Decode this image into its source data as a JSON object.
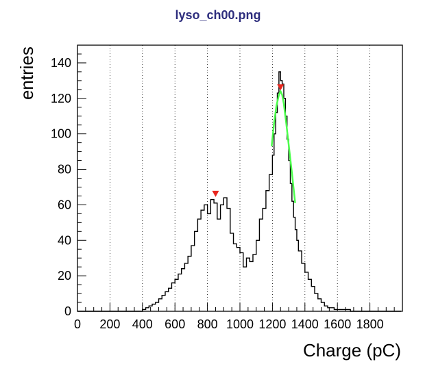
{
  "chart_data": {
    "type": "histogram",
    "title": "lyso_ch00.png",
    "xlabel": "Charge (pC)",
    "ylabel": "entries",
    "xlim": [
      0,
      2000
    ],
    "ylim": [
      0,
      150
    ],
    "x_ticks": [
      0,
      200,
      400,
      600,
      800,
      1000,
      1200,
      1400,
      1600,
      1800
    ],
    "x_tick_labels": [
      "0",
      "200",
      "400",
      "600",
      "800",
      "1000",
      "1200",
      "1400",
      "1600",
      "1800"
    ],
    "y_ticks": [
      0,
      20,
      40,
      60,
      80,
      100,
      120,
      140
    ],
    "y_tick_labels": [
      "0",
      "20",
      "40",
      "60",
      "80",
      "100",
      "120",
      "140"
    ],
    "grid": "vertical-dotted",
    "histogram": {
      "x": [
        0,
        40,
        80,
        120,
        160,
        200,
        240,
        280,
        320,
        360,
        400,
        420,
        440,
        460,
        480,
        500,
        520,
        540,
        560,
        580,
        600,
        620,
        640,
        660,
        680,
        700,
        720,
        740,
        760,
        780,
        800,
        820,
        840,
        860,
        880,
        900,
        920,
        940,
        960,
        980,
        1000,
        1020,
        1040,
        1060,
        1080,
        1100,
        1120,
        1140,
        1160,
        1180,
        1200,
        1210,
        1220,
        1230,
        1240,
        1250,
        1260,
        1270,
        1280,
        1290,
        1300,
        1310,
        1320,
        1330,
        1340,
        1350,
        1360,
        1380,
        1400,
        1420,
        1440,
        1460,
        1480,
        1500,
        1520,
        1540,
        1560,
        1580,
        1600,
        1640,
        1680,
        1720,
        1760,
        1800,
        1850,
        1900,
        1950
      ],
      "y": [
        0,
        0,
        0,
        0,
        0,
        0,
        0,
        0,
        0,
        0,
        1,
        2,
        3,
        4,
        5,
        7,
        9,
        11,
        13,
        16,
        18,
        21,
        24,
        27,
        31,
        37,
        45,
        52,
        57,
        60,
        55,
        63,
        61,
        52,
        60,
        64,
        58,
        44,
        38,
        36,
        33,
        25,
        30,
        28,
        32,
        40,
        52,
        58,
        68,
        77,
        88,
        100,
        112,
        123,
        135,
        130,
        128,
        120,
        110,
        97,
        85,
        72,
        62,
        53,
        46,
        40,
        34,
        27,
        22,
        18,
        14,
        10,
        7,
        5,
        3,
        2,
        2,
        1,
        1,
        1,
        0,
        0,
        0,
        0,
        0,
        0,
        0
      ]
    },
    "fit_curve": {
      "x": [
        1195,
        1210,
        1225,
        1240,
        1250,
        1260,
        1270,
        1285,
        1300,
        1320,
        1340
      ],
      "y": [
        93,
        106,
        116,
        122,
        124,
        122,
        117,
        106,
        94,
        78,
        61
      ]
    },
    "peak_markers": [
      {
        "x": 850,
        "y": 66
      },
      {
        "x": 1250,
        "y": 126
      }
    ],
    "colors": {
      "title": "#2d2d7d",
      "histogram": "#000000",
      "fit": "#4cff4c",
      "markers": "#e8271f"
    }
  }
}
